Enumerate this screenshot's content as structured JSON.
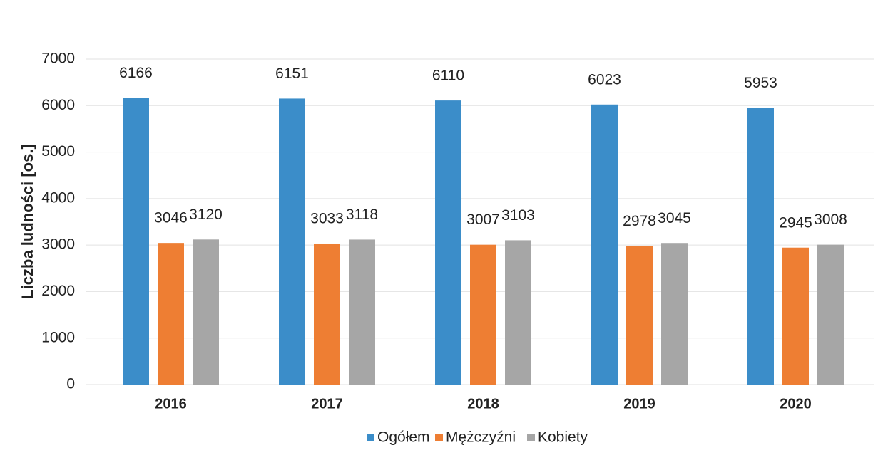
{
  "chart_data": {
    "type": "bar",
    "y_label": "Liczba ludności [os.]",
    "categories": [
      "2016",
      "2017",
      "2018",
      "2019",
      "2020"
    ],
    "series": [
      {
        "name": "Ogółem",
        "color": "#3b8dc9",
        "values": [
          6166,
          6151,
          6110,
          6023,
          5953
        ]
      },
      {
        "name": "Mężczyźni",
        "color": "#ee7e33",
        "values": [
          3046,
          3033,
          3007,
          2978,
          2945
        ]
      },
      {
        "name": "Kobiety",
        "color": "#a6a6a6",
        "values": [
          3120,
          3118,
          3103,
          3045,
          3008
        ]
      }
    ],
    "ylim": [
      0,
      7000
    ],
    "yticks": [
      0,
      1000,
      2000,
      3000,
      4000,
      5000,
      6000,
      7000
    ],
    "grid": true,
    "legend": "bottom"
  }
}
